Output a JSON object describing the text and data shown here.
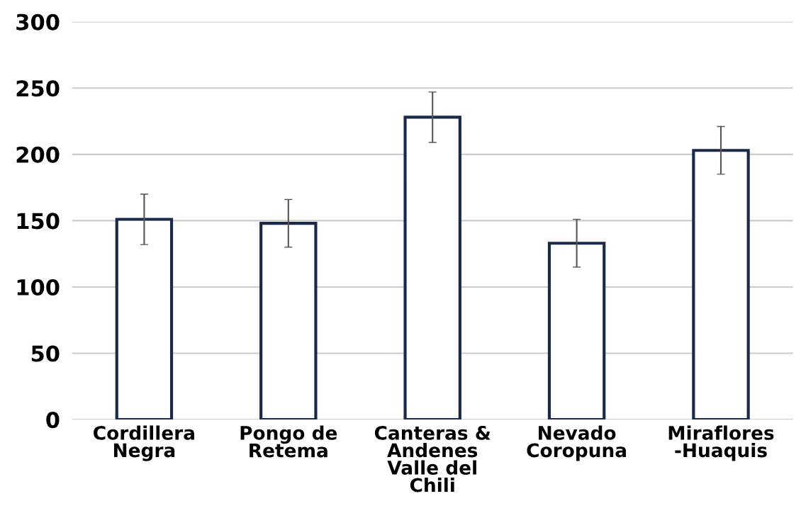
{
  "chart_data": {
    "type": "bar",
    "categories": [
      "Cordillera\nNegra",
      "Pongo de\nRetema",
      "Canteras &\nAndenes\nValle del\nChili",
      "Nevado\nCoropuna",
      "Miraflores\n-Huaquis"
    ],
    "values": [
      151,
      148,
      228,
      133,
      203
    ],
    "errors": [
      19,
      18,
      19,
      18,
      18
    ],
    "color": "#1b2a47",
    "ylim": [
      0,
      300
    ],
    "yticks": [
      0,
      50,
      100,
      150,
      200,
      250,
      300
    ],
    "grid": "y"
  }
}
